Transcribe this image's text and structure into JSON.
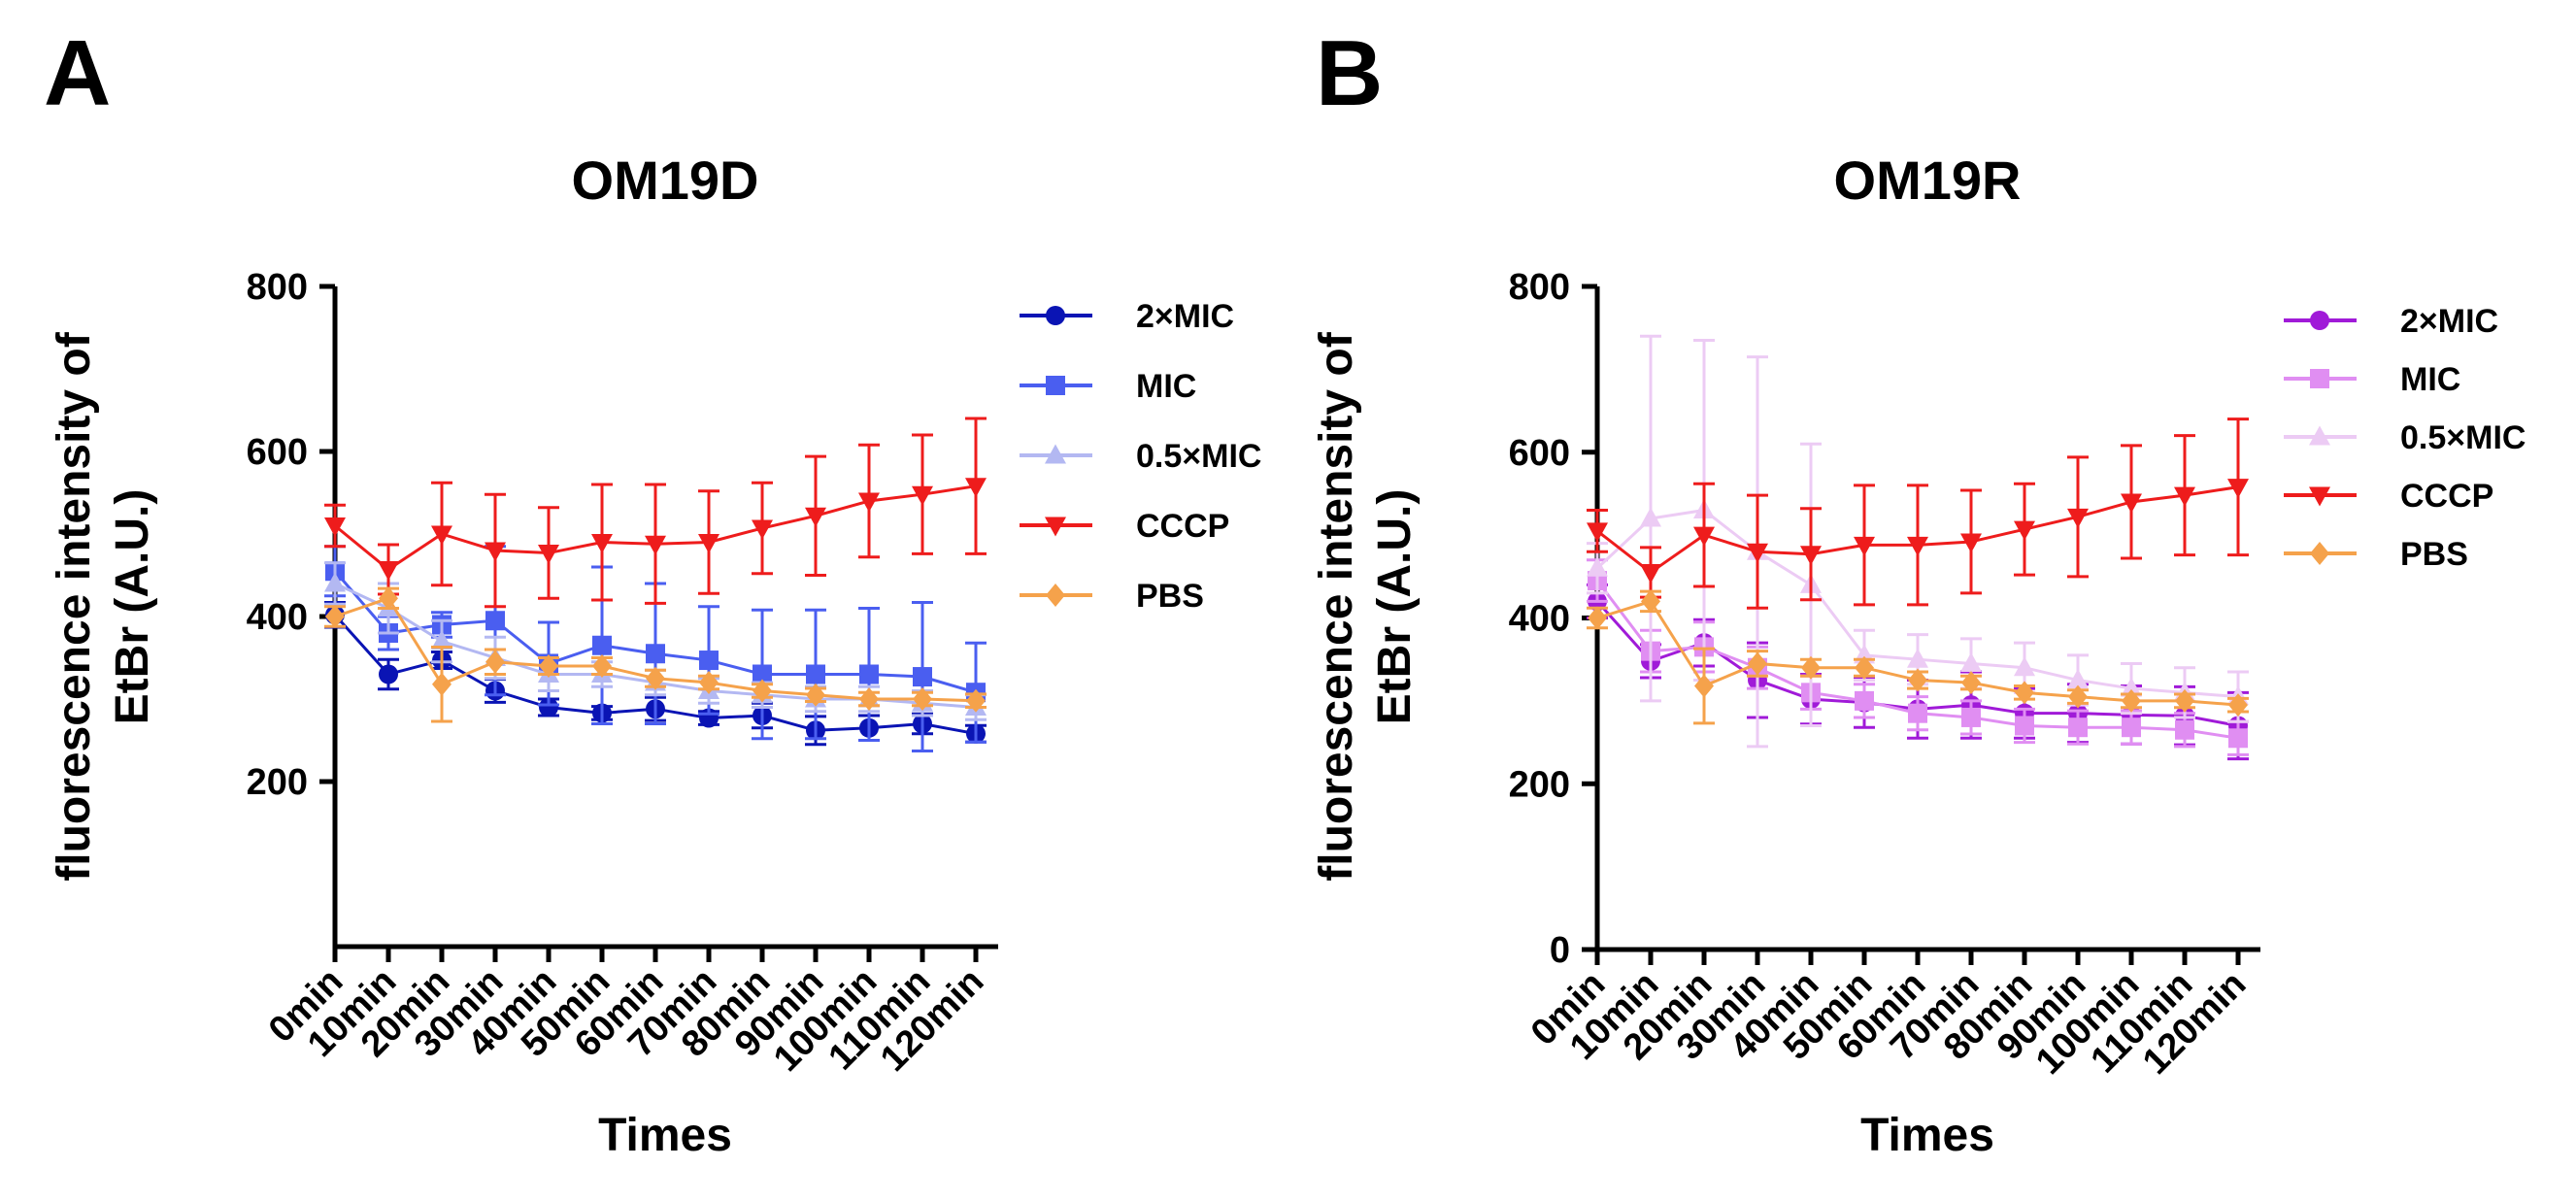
{
  "panels": [
    {
      "letter": "A",
      "chart_title": "OM19D",
      "y_label_lines": [
        "fluorescence intensity of",
        "EtBr (A.U.)"
      ]
    },
    {
      "letter": "B",
      "chart_title": "OM19R",
      "y_label_lines": [
        "fluorescence intensity of",
        "EtBr (A.U.)"
      ]
    }
  ],
  "chart_data": [
    {
      "type": "line",
      "title": "OM19D",
      "xlabel": "Times",
      "ylabel": "fluorescence intensity of EtBr (A.U.)",
      "ylim": [
        0,
        800
      ],
      "yticks": [
        200,
        400,
        600,
        800
      ],
      "categories": [
        "0min",
        "10min",
        "20min",
        "30min",
        "40min",
        "50min",
        "60min",
        "70min",
        "80min",
        "90min",
        "100min",
        "110min",
        "120min"
      ],
      "legend_position": "right",
      "series": [
        {
          "name": "2×MIC",
          "color": "#0a14b4",
          "marker": "circle",
          "values": [
            402,
            330,
            347,
            310,
            290,
            283,
            288,
            277,
            280,
            262,
            265,
            270,
            258
          ],
          "errors": [
            15,
            18,
            10,
            14,
            10,
            8,
            14,
            8,
            15,
            17,
            15,
            12,
            10
          ]
        },
        {
          "name": "MIC",
          "color": "#4a5ef0",
          "marker": "square",
          "values": [
            455,
            380,
            390,
            395,
            343,
            365,
            355,
            347,
            330,
            330,
            330,
            327,
            308
          ],
          "errors": [
            30,
            20,
            15,
            90,
            50,
            95,
            85,
            65,
            78,
            78,
            80,
            90,
            60
          ]
        },
        {
          "name": "0.5×MIC",
          "color": "#b3b8f2",
          "marker": "triangle-up",
          "values": [
            440,
            410,
            370,
            350,
            330,
            330,
            320,
            310,
            305,
            300,
            300,
            295,
            290
          ],
          "errors": [
            25,
            30,
            25,
            25,
            20,
            15,
            15,
            15,
            15,
            15,
            15,
            15,
            15
          ]
        },
        {
          "name": "CCCP",
          "color": "#ee1c1c",
          "marker": "triangle-down",
          "values": [
            510,
            457,
            500,
            480,
            477,
            490,
            488,
            490,
            507,
            522,
            540,
            548,
            558
          ],
          "errors": [
            25,
            30,
            62,
            68,
            55,
            70,
            72,
            62,
            55,
            72,
            68,
            72,
            82
          ]
        },
        {
          "name": "PBS",
          "color": "#f5a24b",
          "marker": "diamond",
          "values": [
            400,
            422,
            318,
            345,
            340,
            340,
            325,
            320,
            310,
            305,
            300,
            300,
            298
          ],
          "errors": [
            12,
            12,
            45,
            15,
            10,
            10,
            10,
            8,
            8,
            8,
            8,
            8,
            8
          ]
        }
      ]
    },
    {
      "type": "line",
      "title": "OM19R",
      "xlabel": "Times",
      "ylabel": "fluorescence intensity of EtBr (A.U.)",
      "ylim": [
        0,
        800
      ],
      "yticks": [
        0,
        200,
        400,
        600,
        800
      ],
      "categories": [
        "0min",
        "10min",
        "20min",
        "30min",
        "40min",
        "50min",
        "60min",
        "70min",
        "80min",
        "90min",
        "100min",
        "110min",
        "120min"
      ],
      "legend_position": "right",
      "series": [
        {
          "name": "2×MIC",
          "color": "#a01ad8",
          "marker": "circle",
          "values": [
            420,
            348,
            370,
            325,
            302,
            298,
            290,
            295,
            285,
            285,
            283,
            282,
            270
          ],
          "errors": [
            20,
            20,
            28,
            45,
            30,
            30,
            35,
            40,
            30,
            35,
            35,
            35,
            40
          ]
        },
        {
          "name": "MIC",
          "color": "#e08ef2",
          "marker": "square",
          "values": [
            445,
            360,
            365,
            340,
            310,
            300,
            285,
            280,
            270,
            268,
            268,
            265,
            255
          ],
          "errors": [
            25,
            25,
            30,
            25,
            20,
            20,
            20,
            20,
            20,
            20,
            20,
            20,
            20
          ]
        },
        {
          "name": "0.5×MIC",
          "color": "#eccbf4",
          "marker": "triangle-up",
          "values": [
            460,
            520,
            530,
            480,
            440,
            355,
            350,
            345,
            340,
            325,
            315,
            310,
            305
          ],
          "errors": [
            30,
            220,
            205,
            235,
            170,
            30,
            30,
            30,
            30,
            30,
            30,
            30,
            30
          ]
        },
        {
          "name": "CCCP",
          "color": "#ee1c1c",
          "marker": "triangle-down",
          "values": [
            505,
            455,
            500,
            480,
            477,
            488,
            488,
            492,
            507,
            522,
            540,
            548,
            558
          ],
          "errors": [
            25,
            30,
            62,
            68,
            55,
            72,
            72,
            62,
            55,
            72,
            68,
            72,
            82
          ]
        },
        {
          "name": "PBS",
          "color": "#f5a24b",
          "marker": "diamond",
          "values": [
            400,
            420,
            318,
            345,
            340,
            340,
            325,
            322,
            310,
            305,
            300,
            300,
            295
          ],
          "errors": [
            12,
            12,
            45,
            15,
            10,
            10,
            10,
            8,
            8,
            8,
            8,
            8,
            8
          ]
        }
      ]
    }
  ]
}
